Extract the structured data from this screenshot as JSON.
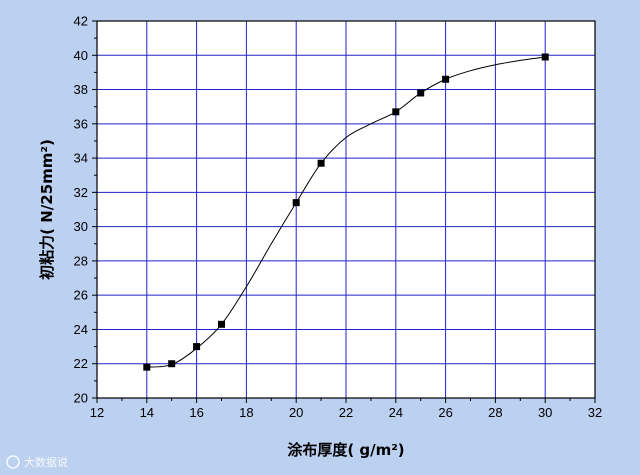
{
  "chart_data": {
    "type": "scatter",
    "xlabel": "涂布厚度( g/m²)",
    "ylabel": "初粘力( N/25mm²)",
    "xlim": [
      12,
      32
    ],
    "ylim": [
      20,
      42
    ],
    "x_ticks": [
      12,
      14,
      16,
      18,
      20,
      22,
      24,
      26,
      28,
      30,
      32
    ],
    "y_ticks": [
      20,
      22,
      24,
      26,
      28,
      30,
      32,
      34,
      36,
      38,
      40,
      42
    ],
    "grid": true,
    "series": [
      {
        "marker": "square",
        "points": [
          {
            "x": 14,
            "y": 21.8
          },
          {
            "x": 15,
            "y": 22.0
          },
          {
            "x": 16,
            "y": 23.0
          },
          {
            "x": 17,
            "y": 24.3
          },
          {
            "x": 20,
            "y": 31.4
          },
          {
            "x": 21,
            "y": 33.7
          },
          {
            "x": 24,
            "y": 36.7
          },
          {
            "x": 25,
            "y": 37.8
          },
          {
            "x": 26,
            "y": 38.6
          },
          {
            "x": 30,
            "y": 39.9
          }
        ]
      }
    ],
    "fit_curve": [
      {
        "x": 14,
        "y": 21.8
      },
      {
        "x": 15,
        "y": 21.95
      },
      {
        "x": 16,
        "y": 22.9
      },
      {
        "x": 17,
        "y": 24.3
      },
      {
        "x": 18,
        "y": 26.5
      },
      {
        "x": 19,
        "y": 29.0
      },
      {
        "x": 20,
        "y": 31.4
      },
      {
        "x": 21,
        "y": 33.7
      },
      {
        "x": 22,
        "y": 35.2
      },
      {
        "x": 23,
        "y": 36.0
      },
      {
        "x": 24,
        "y": 36.7
      },
      {
        "x": 25,
        "y": 37.8
      },
      {
        "x": 26,
        "y": 38.6
      },
      {
        "x": 27,
        "y": 39.1
      },
      {
        "x": 28,
        "y": 39.45
      },
      {
        "x": 29,
        "y": 39.7
      },
      {
        "x": 30,
        "y": 39.9
      }
    ],
    "colors": {
      "background": "#bcd0f0",
      "plot_area": "#ffffff",
      "grid": "#2222cc",
      "marker": "#000000",
      "curve": "#000000"
    }
  },
  "watermark": {
    "text": "大数据说"
  }
}
